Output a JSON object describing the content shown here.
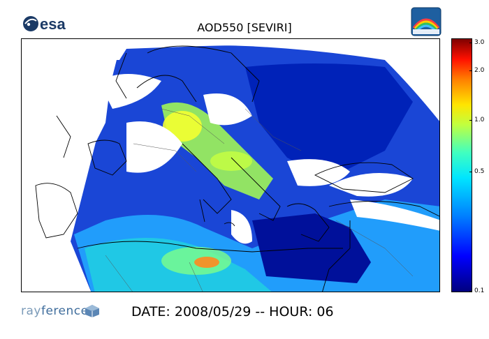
{
  "header": {
    "logo_text": "esa",
    "title": "AOD550   [SEVIRI]"
  },
  "colorbar": {
    "ticks": [
      "3.0",
      "2.0",
      "1.0",
      "0.5",
      "0.1"
    ],
    "colors": [
      "#00007f",
      "#0000ff",
      "#0080ff",
      "#00e5ff",
      "#ffe500",
      "#ff8000",
      "#ff1000",
      "#7f0000"
    ]
  },
  "footer": {
    "brand_light": "ray",
    "brand_dark": "ference",
    "date_line": "DATE: 2008/05/29 -- HOUR: 06"
  }
}
